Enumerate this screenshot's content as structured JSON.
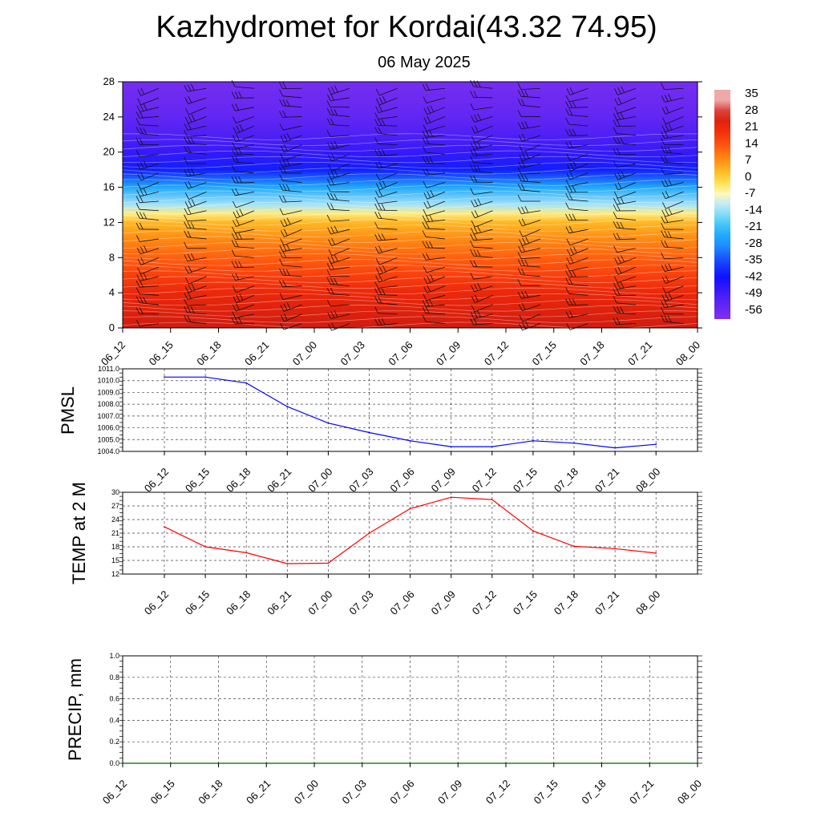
{
  "header": {
    "title": "Kazhydromet for Kordai(43.32 74.95)",
    "date": "06 May 2025"
  },
  "colors": {
    "pmsl_line": "#0000ff",
    "temp_line": "#ff0000",
    "precip_line": "#006400"
  },
  "chart_data": [
    {
      "type": "heatmap",
      "title": "",
      "ylabel": "",
      "description_text": "",
      "x": [
        "06_12",
        "06_15",
        "06_18",
        "06_21",
        "07_00",
        "07_03",
        "07_06",
        "07_09",
        "07_12",
        "07_15",
        "07_18",
        "07_21",
        "08_00"
      ],
      "yticks": [
        0,
        4,
        8,
        12,
        16,
        20,
        24,
        28
      ],
      "ylim": [
        0,
        28
      ],
      "colorbar_ticks": [
        35,
        28,
        21,
        14,
        7,
        0,
        -7,
        -14,
        -21,
        -28,
        -35,
        -42,
        -49,
        -56
      ],
      "temperature_by_level": [
        {
          "level": 0,
          "value": 28
        },
        {
          "level": 2,
          "value": 25
        },
        {
          "level": 4,
          "value": 22
        },
        {
          "level": 6,
          "value": 17
        },
        {
          "level": 8,
          "value": 12
        },
        {
          "level": 10,
          "value": 7
        },
        {
          "level": 12,
          "value": 1
        },
        {
          "level": 13,
          "value": -7
        },
        {
          "level": 14,
          "value": -17
        },
        {
          "level": 16,
          "value": -30
        },
        {
          "level": 18,
          "value": -48
        },
        {
          "level": 20,
          "value": -56
        },
        {
          "level": 22,
          "value": -60
        },
        {
          "level": 24,
          "value": -64
        },
        {
          "level": 28,
          "value": -68
        }
      ],
      "overlay": "wind barbs"
    },
    {
      "type": "line",
      "ylabel": "PMSL",
      "x": [
        "06_12",
        "06_15",
        "06_18",
        "06_21",
        "07_00",
        "07_03",
        "07_06",
        "07_09",
        "07_12",
        "07_15",
        "07_18",
        "07_21",
        "08_00"
      ],
      "yticks": [
        "1004.0",
        "1005.0",
        "1006.0",
        "1007.0",
        "1008.0",
        "1009.0",
        "1010.0",
        "1011.0"
      ],
      "ylim": [
        1004,
        1011
      ],
      "grid": true,
      "series": [
        {
          "values": [
            1010.3,
            1010.3,
            1009.8,
            1007.8,
            1006.4,
            1005.6,
            1004.9,
            1004.4,
            1004.4,
            1004.9,
            1004.7,
            1004.3,
            1004.6
          ]
        }
      ]
    },
    {
      "type": "line",
      "ylabel": "TEMP at 2 M",
      "x": [
        "06_12",
        "06_15",
        "06_18",
        "06_21",
        "07_00",
        "07_03",
        "07_06",
        "07_09",
        "07_12",
        "07_15",
        "07_18",
        "07_21",
        "08_00"
      ],
      "yticks": [
        "12",
        "15",
        "18",
        "21",
        "24",
        "27",
        "30"
      ],
      "ylim": [
        12,
        30
      ],
      "grid": true,
      "series": [
        {
          "values": [
            22.4,
            18.0,
            16.7,
            14.3,
            14.4,
            21.0,
            26.4,
            28.9,
            28.4,
            21.5,
            18.1,
            17.6,
            16.6
          ]
        }
      ]
    },
    {
      "type": "line",
      "ylabel": "PRECIP, mm",
      "x": [
        "06_12",
        "06_15",
        "06_18",
        "06_21",
        "07_00",
        "07_03",
        "07_06",
        "07_09",
        "07_12",
        "07_15",
        "07_18",
        "07_21",
        "08_00"
      ],
      "yticks": [
        "0.0",
        "0.2",
        "0.4",
        "0.6",
        "0.8",
        "1.0"
      ],
      "ylim": [
        0,
        1
      ],
      "grid": true,
      "series": [
        {
          "values": [
            0,
            0,
            0,
            0,
            0,
            0,
            0,
            0,
            0,
            0,
            0,
            0,
            0
          ]
        }
      ]
    }
  ]
}
